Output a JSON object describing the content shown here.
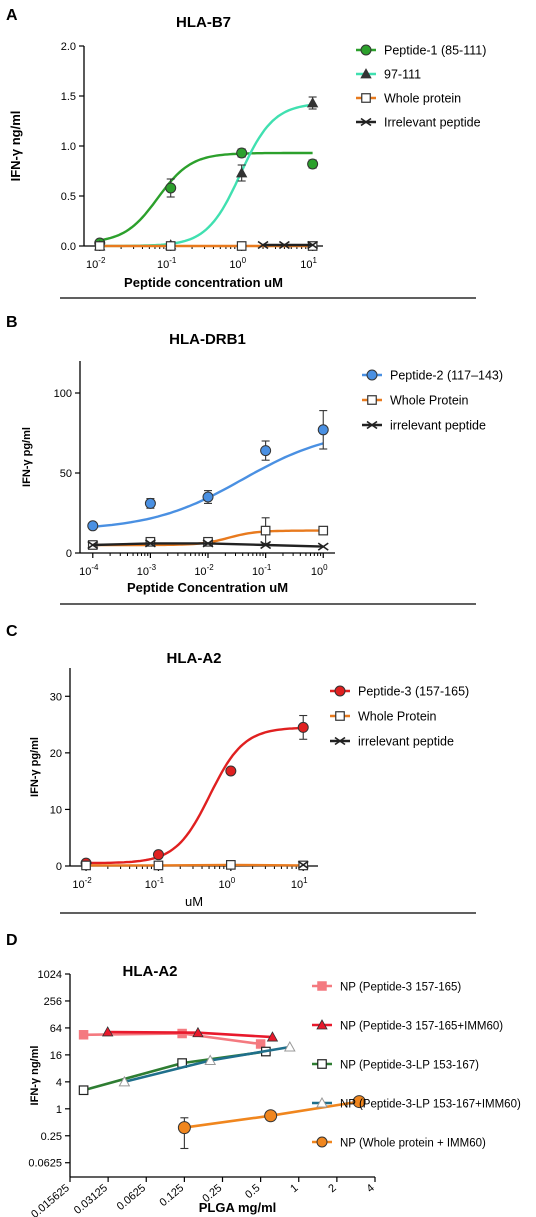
{
  "chart_data": [
    {
      "panel": "A",
      "type": "line",
      "title": "HLA-B7",
      "xlabel": "Peptide concentration uM",
      "ylabel": "IFN-γ ng/ml",
      "xscale": "log10",
      "xlim": [
        0.006,
        14
      ],
      "ylim": [
        0,
        2.0
      ],
      "xticks": [
        0.01,
        0.1,
        1,
        10
      ],
      "xtick_labels": [
        [
          "10",
          "-2"
        ],
        [
          "10",
          "-1"
        ],
        [
          "10",
          "0"
        ],
        [
          "10",
          "1"
        ]
      ],
      "yticks": [
        0,
        0.5,
        1.0,
        1.5,
        2.0
      ],
      "ytick_labels": [
        "0.0",
        "0.5",
        "1.0",
        "1.5",
        "2.0"
      ],
      "legend_position": "top-right",
      "series": [
        {
          "name": "Peptide-1 (85-111)",
          "color": "#2ca02c",
          "marker": "circle",
          "fit": "sigmoid",
          "x": [
            0.01,
            0.1,
            1,
            10
          ],
          "y": [
            0.03,
            0.58,
            0.93,
            0.82
          ],
          "err": [
            0,
            0.09,
            0.04,
            0.04
          ]
        },
        {
          "name": "97-111",
          "color": "#40e0b0",
          "marker": "triangle",
          "fit": "sigmoid",
          "x": [
            0.01,
            0.1,
            1,
            10
          ],
          "y": [
            0.0,
            0.01,
            0.73,
            1.43
          ],
          "err": [
            0,
            0.03,
            0.08,
            0.06
          ]
        },
        {
          "name": "Whole protein",
          "color": "#e87a1e",
          "marker": "square-open",
          "fit": "flat",
          "x": [
            0.01,
            0.1,
            1,
            10
          ],
          "y": [
            0.0,
            0.0,
            0.0,
            0.0
          ],
          "err": [
            0,
            0,
            0,
            0
          ]
        },
        {
          "name": "Irrelevant peptide",
          "color": "#222222",
          "marker": "x",
          "fit": "flat",
          "x": [
            2,
            4,
            10
          ],
          "y": [
            0.01,
            0.01,
            0.01
          ],
          "err": [
            0,
            0,
            0
          ]
        }
      ]
    },
    {
      "panel": "B",
      "type": "line",
      "title": "HLA-DRB1",
      "xlabel": "Peptide Concentration uM",
      "ylabel": "IFN-γ pg/ml",
      "xscale": "log10",
      "xlim": [
        6e-05,
        1.6
      ],
      "ylim": [
        0,
        120
      ],
      "xticks": [
        0.0001,
        0.001,
        0.01,
        0.1,
        1
      ],
      "xtick_labels": [
        [
          "10",
          "-4"
        ],
        [
          "10",
          "-3"
        ],
        [
          "10",
          "-2"
        ],
        [
          "10",
          "-1"
        ],
        [
          "10",
          "0"
        ]
      ],
      "yticks": [
        0,
        50,
        100
      ],
      "ytick_labels": [
        "0",
        "50",
        "100"
      ],
      "legend_position": "top-right",
      "series": [
        {
          "name": "Peptide-2 (117–143)",
          "color": "#4a90e2",
          "marker": "circle",
          "fit": "curve",
          "x": [
            0.0001,
            0.001,
            0.01,
            0.1,
            1
          ],
          "y": [
            17,
            31,
            35,
            64,
            77
          ],
          "err": [
            0,
            3,
            4,
            6,
            12
          ]
        },
        {
          "name": "Whole Protein",
          "color": "#e87a1e",
          "marker": "square-open",
          "fit": "sigmoid",
          "x": [
            0.0001,
            0.001,
            0.01,
            0.1,
            1
          ],
          "y": [
            5,
            7,
            7,
            14,
            14
          ],
          "err": [
            0,
            0,
            0,
            8,
            0
          ]
        },
        {
          "name": "irrelevant peptide",
          "color": "#222222",
          "marker": "x",
          "fit": "flat",
          "x": [
            0.0001,
            0.001,
            0.01,
            0.1,
            1
          ],
          "y": [
            5,
            6,
            6,
            5,
            4
          ],
          "err": [
            0,
            0,
            0,
            0,
            0
          ]
        }
      ]
    },
    {
      "panel": "C",
      "type": "line",
      "title": "HLA-A2",
      "xlabel": "uM",
      "ylabel": "IFN-γ pg/ml",
      "xscale": "log10",
      "xlim": [
        0.006,
        16
      ],
      "ylim": [
        0,
        35
      ],
      "xticks": [
        0.01,
        0.1,
        1,
        10
      ],
      "xtick_labels": [
        [
          "10",
          "-2"
        ],
        [
          "10",
          "-1"
        ],
        [
          "10",
          "0"
        ],
        [
          "10",
          "1"
        ]
      ],
      "yticks": [
        0,
        10,
        20,
        30
      ],
      "ytick_labels": [
        "0",
        "10",
        "20",
        "30"
      ],
      "legend_position": "top-right",
      "series": [
        {
          "name": "Peptide-3 (157-165)",
          "color": "#e02020",
          "marker": "circle",
          "fit": "sigmoid",
          "x": [
            0.01,
            0.1,
            1,
            10
          ],
          "y": [
            0.5,
            2.0,
            16.8,
            24.5
          ],
          "err": [
            0,
            0,
            0,
            2.1
          ]
        },
        {
          "name": "Whole Protein",
          "color": "#e87a1e",
          "marker": "square-open",
          "fit": "flat",
          "x": [
            0.01,
            0.1,
            1,
            10
          ],
          "y": [
            0.1,
            0.1,
            0.2,
            0.1
          ],
          "err": [
            0,
            0,
            0,
            0
          ]
        },
        {
          "name": "irrelevant peptide",
          "color": "#222222",
          "marker": "x",
          "fit": "flat",
          "x": [
            10
          ],
          "y": [
            0.2
          ],
          "err": [
            0
          ]
        }
      ]
    },
    {
      "panel": "D",
      "type": "line",
      "title": "HLA-A2",
      "xlabel": "PLGA mg/ml",
      "ylabel": "IFN-γ ng/ml",
      "xscale": "log2",
      "yscale": "log2",
      "xlim": [
        0.015625,
        4
      ],
      "ylim": [
        0.03,
        1024
      ],
      "xticks": [
        0.015625,
        0.03125,
        0.0625,
        0.125,
        0.25,
        0.5,
        1,
        2,
        4
      ],
      "xtick_labels": [
        "0.015625",
        "0.03125",
        "0.0625",
        "0.125",
        "0.25",
        "0.5",
        "1",
        "2",
        "4"
      ],
      "yticks": [
        0.0625,
        0.25,
        1,
        4,
        16,
        64,
        256,
        1024
      ],
      "ytick_labels": [
        "0.0625",
        "0.25",
        "1",
        "4",
        "16",
        "64",
        "256",
        "1024"
      ],
      "legend_position": "right",
      "series": [
        {
          "name": "NP (Peptide-3 157-165)",
          "color": "#f47a80",
          "marker": "square-filled",
          "x": [
            0.02,
            0.12,
            0.5
          ],
          "y": [
            45,
            48,
            28
          ],
          "err": [
            0,
            0,
            0
          ]
        },
        {
          "name": "NP (Peptide-3 157-165+IMM60)",
          "color": "#e8192c",
          "marker": "triangle",
          "x": [
            0.031,
            0.16,
            0.62
          ],
          "y": [
            52,
            50,
            40
          ],
          "err": [
            0,
            0,
            0
          ]
        },
        {
          "name": "NP (Peptide-3-LP 153-167)",
          "color": "#2e7d32",
          "marker": "square-open",
          "x": [
            0.02,
            0.12,
            0.55
          ],
          "y": [
            2.6,
            10.5,
            19
          ],
          "err": [
            0,
            0,
            0
          ]
        },
        {
          "name": "NP (Peptide-3-LP 153-167+IMM60)",
          "color": "#1f6f8b",
          "marker": "triangle-open",
          "x": [
            0.042,
            0.2,
            0.85
          ],
          "y": [
            4,
            12,
            24
          ],
          "err": [
            0,
            0,
            0
          ]
        },
        {
          "name": "NP (Whole protein + IMM60)",
          "color": "#f0861e",
          "marker": "circle",
          "x": [
            0.125,
            0.6,
            3.0
          ],
          "y": [
            0.38,
            0.7,
            1.45
          ],
          "err": [
            0.25,
            0,
            0
          ]
        }
      ]
    }
  ],
  "panel_letters": [
    "A",
    "B",
    "C",
    "D"
  ]
}
